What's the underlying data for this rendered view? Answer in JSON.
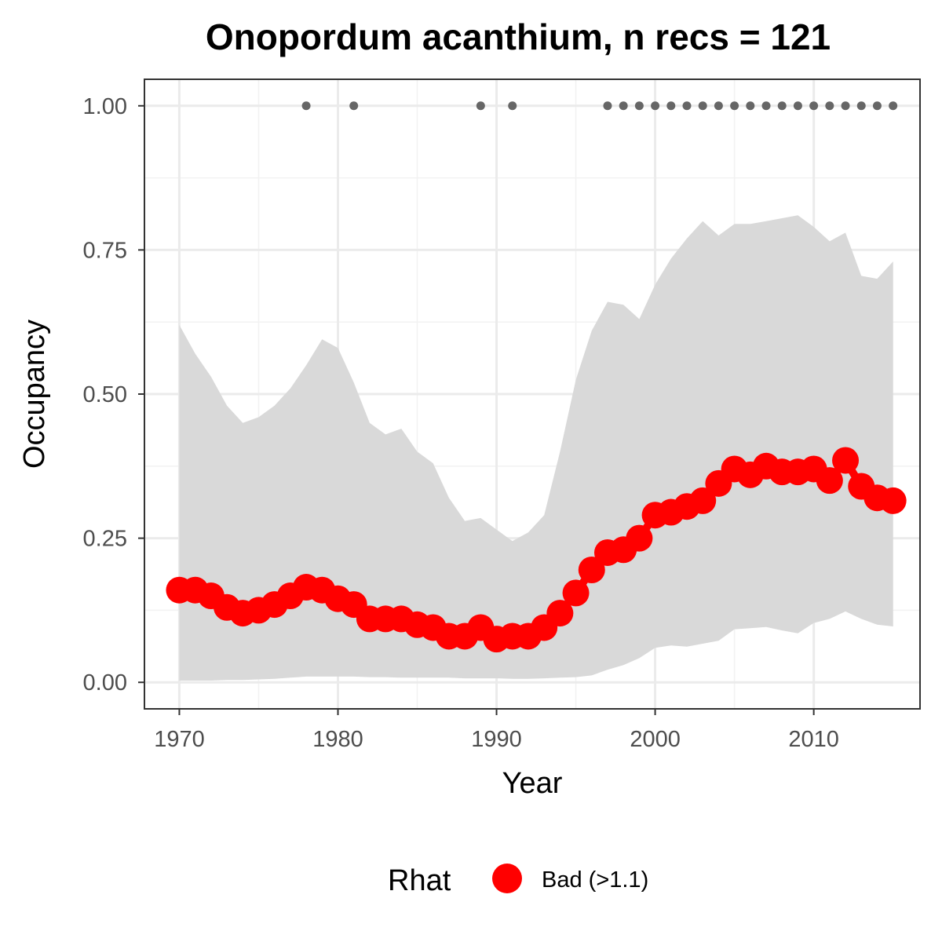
{
  "chart_data": {
    "type": "line",
    "title": "Onopordum acanthium, n recs = 121",
    "xlabel": "Year",
    "ylabel": "Occupancy",
    "xlim": [
      1967.8,
      2016.7
    ],
    "ylim": [
      -0.046,
      1.046
    ],
    "x_ticks": [
      1970,
      1980,
      1990,
      2000,
      2010
    ],
    "x_tick_labels": [
      "1970",
      "1980",
      "1990",
      "2000",
      "2010"
    ],
    "y_ticks": [
      0,
      0.25,
      0.5,
      0.75,
      1.0
    ],
    "y_tick_labels": [
      "0.00",
      "0.25",
      "0.50",
      "0.75",
      "1.00"
    ],
    "grid": true,
    "legend": {
      "position": "bottom",
      "title": "Rhat",
      "entries": [
        {
          "label": "Bad (>1.1)",
          "color": "#ff0000"
        }
      ]
    },
    "colors": {
      "mean": "#ff0000",
      "ribbon": "#d9d9d9",
      "records": "#666666",
      "grid_major": "#ebebeb",
      "grid_minor": "#f2f2f2",
      "panel_border": "#333333"
    },
    "x": [
      1970,
      1971,
      1972,
      1973,
      1974,
      1975,
      1976,
      1977,
      1978,
      1979,
      1980,
      1981,
      1982,
      1983,
      1984,
      1985,
      1986,
      1987,
      1988,
      1989,
      1990,
      1991,
      1992,
      1993,
      1994,
      1995,
      1996,
      1997,
      1998,
      1999,
      2000,
      2001,
      2002,
      2003,
      2004,
      2005,
      2006,
      2007,
      2008,
      2009,
      2010,
      2011,
      2012,
      2013,
      2014,
      2015
    ],
    "series": [
      {
        "role": "mean",
        "rhat": "Bad (>1.1)",
        "values": [
          0.16,
          0.16,
          0.15,
          0.13,
          0.12,
          0.125,
          0.135,
          0.15,
          0.165,
          0.16,
          0.145,
          0.135,
          0.11,
          0.11,
          0.11,
          0.1,
          0.095,
          0.08,
          0.08,
          0.095,
          0.075,
          0.08,
          0.08,
          0.095,
          0.12,
          0.155,
          0.195,
          0.225,
          0.23,
          0.25,
          0.29,
          0.295,
          0.305,
          0.315,
          0.345,
          0.37,
          0.36,
          0.375,
          0.365,
          0.365,
          0.37,
          0.35,
          0.385,
          0.34,
          0.32,
          0.315
        ]
      },
      {
        "role": "lower",
        "values": [
          0.003,
          0.003,
          0.003,
          0.004,
          0.004,
          0.005,
          0.006,
          0.008,
          0.01,
          0.01,
          0.01,
          0.01,
          0.009,
          0.009,
          0.008,
          0.008,
          0.008,
          0.008,
          0.007,
          0.007,
          0.007,
          0.006,
          0.006,
          0.007,
          0.008,
          0.009,
          0.012,
          0.022,
          0.03,
          0.042,
          0.06,
          0.064,
          0.062,
          0.067,
          0.072,
          0.092,
          0.094,
          0.096,
          0.09,
          0.085,
          0.103,
          0.11,
          0.123,
          0.11,
          0.1,
          0.097
        ]
      },
      {
        "role": "upper",
        "values": [
          0.62,
          0.57,
          0.53,
          0.48,
          0.45,
          0.46,
          0.48,
          0.51,
          0.55,
          0.595,
          0.58,
          0.52,
          0.45,
          0.43,
          0.44,
          0.4,
          0.38,
          0.32,
          0.28,
          0.285,
          0.265,
          0.245,
          0.26,
          0.29,
          0.4,
          0.525,
          0.61,
          0.66,
          0.655,
          0.63,
          0.69,
          0.735,
          0.77,
          0.8,
          0.775,
          0.795,
          0.795,
          0.8,
          0.805,
          0.81,
          0.79,
          0.765,
          0.78,
          0.705,
          0.7,
          0.73
        ]
      }
    ],
    "records_y": 1.0,
    "record_years": [
      1978,
      1981,
      1989,
      1991,
      1997,
      1998,
      1999,
      2000,
      2001,
      2002,
      2003,
      2004,
      2005,
      2006,
      2007,
      2008,
      2009,
      2010,
      2011,
      2012,
      2013,
      2014,
      2015
    ]
  }
}
